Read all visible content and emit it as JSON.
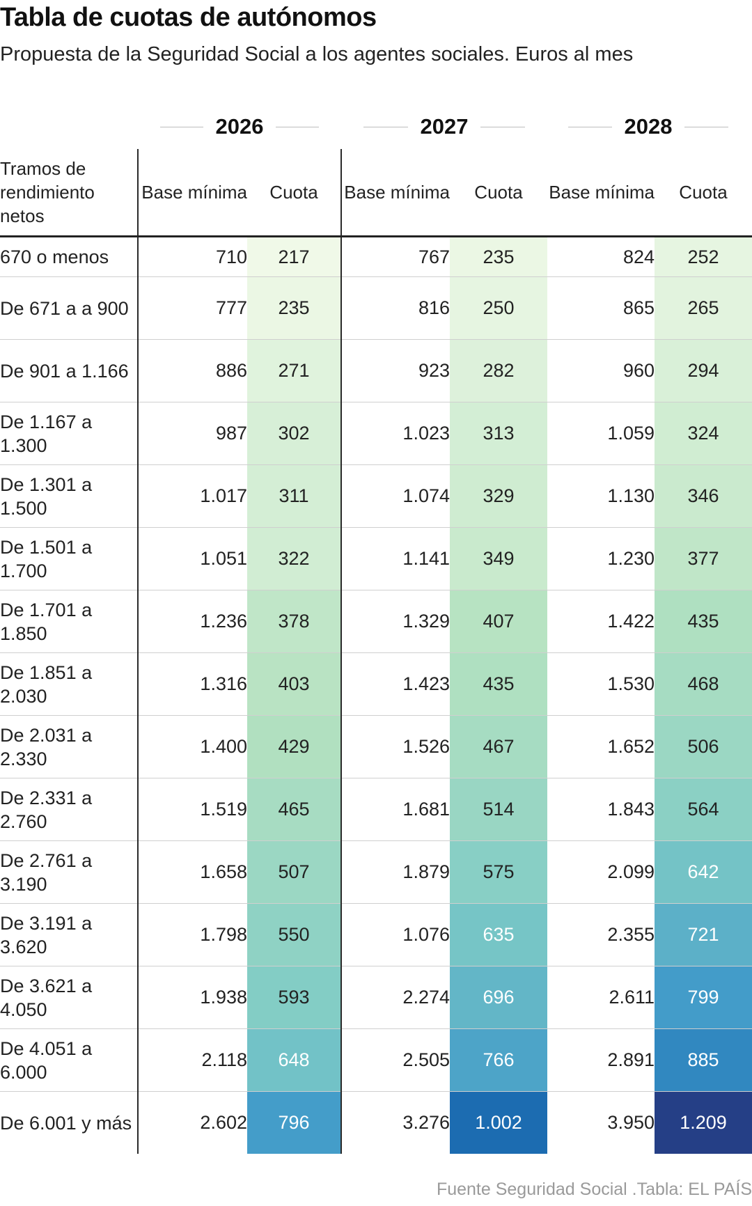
{
  "title": "Tabla de cuotas de autónomos",
  "subtitle": "Propuesta de la Seguridad Social a los agentes sociales. Euros al mes",
  "source": "Fuente Seguridad Social .Tabla: EL PAÍS",
  "colors": {
    "scale_low": "#f0f9e8",
    "scale_mid1": "#b5e2c0",
    "scale_mid2": "#7dcac6",
    "scale_mid3": "#3f99c9",
    "scale_mid4": "#1a6ab0",
    "scale_high": "#253f86",
    "scale_min_value": 217,
    "scale_max_value": 1209
  },
  "chart_data": {
    "type": "table",
    "title": "Tabla de cuotas de autónomos",
    "subtitle": "Propuesta de la Seguridad Social a los agentes sociales. Euros al mes",
    "first_column_header": "Tramos de rendimiento netos",
    "column_headers": {
      "base": "Base mínima",
      "cuota": "Cuota"
    },
    "years": [
      "2026",
      "2027",
      "2028"
    ],
    "rows": [
      {
        "tramo": "670 o menos",
        "values": [
          [
            710,
            217
          ],
          [
            767,
            235
          ],
          [
            824,
            252
          ]
        ]
      },
      {
        "tramo": "De 671 a a 900",
        "values": [
          [
            777,
            235
          ],
          [
            816,
            250
          ],
          [
            865,
            265
          ]
        ]
      },
      {
        "tramo": "De 901 a 1.166",
        "values": [
          [
            886,
            271
          ],
          [
            923,
            282
          ],
          [
            960,
            294
          ]
        ]
      },
      {
        "tramo": "De 1.167 a 1.300",
        "values": [
          [
            987,
            302
          ],
          [
            1023,
            313
          ],
          [
            1059,
            324
          ]
        ]
      },
      {
        "tramo": "De 1.301 a 1.500",
        "values": [
          [
            1017,
            311
          ],
          [
            1074,
            329
          ],
          [
            1130,
            346
          ]
        ]
      },
      {
        "tramo": "De 1.501 a 1.700",
        "values": [
          [
            1051,
            322
          ],
          [
            1141,
            349
          ],
          [
            1230,
            377
          ]
        ]
      },
      {
        "tramo": "De 1.701 a 1.850",
        "values": [
          [
            1236,
            378
          ],
          [
            1329,
            407
          ],
          [
            1422,
            435
          ]
        ]
      },
      {
        "tramo": "De 1.851 a 2.030",
        "values": [
          [
            1316,
            403
          ],
          [
            1423,
            435
          ],
          [
            1530,
            468
          ]
        ]
      },
      {
        "tramo": "De 2.031 a 2.330",
        "values": [
          [
            1400,
            429
          ],
          [
            1526,
            467
          ],
          [
            1652,
            506
          ]
        ]
      },
      {
        "tramo": "De 2.331 a 2.760",
        "values": [
          [
            1519,
            465
          ],
          [
            1681,
            514
          ],
          [
            1843,
            564
          ]
        ]
      },
      {
        "tramo": "De 2.761 a 3.190",
        "values": [
          [
            1658,
            507
          ],
          [
            1879,
            575
          ],
          [
            2099,
            642
          ]
        ]
      },
      {
        "tramo": "De 3.191 a 3.620",
        "values": [
          [
            1798,
            550
          ],
          [
            1076,
            635
          ],
          [
            2355,
            721
          ]
        ]
      },
      {
        "tramo": "De 3.621 a 4.050",
        "values": [
          [
            1938,
            593
          ],
          [
            2274,
            696
          ],
          [
            2611,
            799
          ]
        ]
      },
      {
        "tramo": "De 4.051 a 6.000",
        "values": [
          [
            2118,
            648
          ],
          [
            2505,
            766
          ],
          [
            2891,
            885
          ]
        ]
      },
      {
        "tramo": "De 6.001 y más",
        "values": [
          [
            2602,
            796
          ],
          [
            3276,
            1002
          ],
          [
            3950,
            1209
          ]
        ]
      }
    ]
  }
}
